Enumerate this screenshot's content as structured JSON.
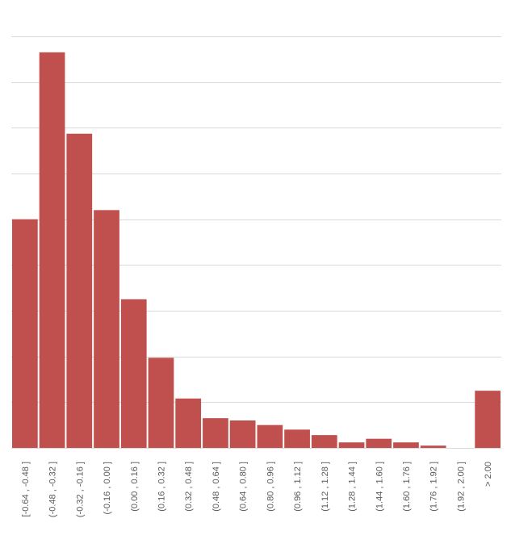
{
  "chart_data": {
    "type": "bar",
    "categories": [
      "[-0.64 , -0.48 ]",
      "(-0.48 , -0.32 ]",
      "(-0.32 , -0.16 ]",
      "(-0.16 , 0.00 ]",
      "(0.00 , 0.16 ]",
      "(0.16 , 0.32 ]",
      "(0.32 , 0.48 ]",
      "(0.48 , 0.64 ]",
      "(0.64 , 0.80 ]",
      "(0.80 , 0.96 ]",
      "(0.96 , 1.12 ]",
      "(1.12 , 1.28 ]",
      "(1.28 , 1.44 ]",
      "(1.44 , 1.60 ]",
      "(1.60 , 1.76 ]",
      "(1.76 , 1.92 ]",
      "(1.92 , 2.00 ]",
      "> 2.00"
    ],
    "values": [
      5.0,
      8.65,
      6.87,
      5.2,
      3.25,
      1.97,
      1.08,
      0.65,
      0.6,
      0.5,
      0.4,
      0.28,
      0.12,
      0.2,
      0.12,
      0.05,
      0,
      1.25
    ],
    "ylim": [
      0,
      9
    ],
    "gridlines": [
      0,
      1,
      2,
      3,
      4,
      5,
      6,
      7,
      8,
      9
    ],
    "grid": true,
    "legend": "none",
    "title": "",
    "xlabel": "",
    "ylabel": "",
    "bar_color": "#c0504d",
    "grid_color": "#d9d9d9",
    "label_color": "#595959"
  }
}
